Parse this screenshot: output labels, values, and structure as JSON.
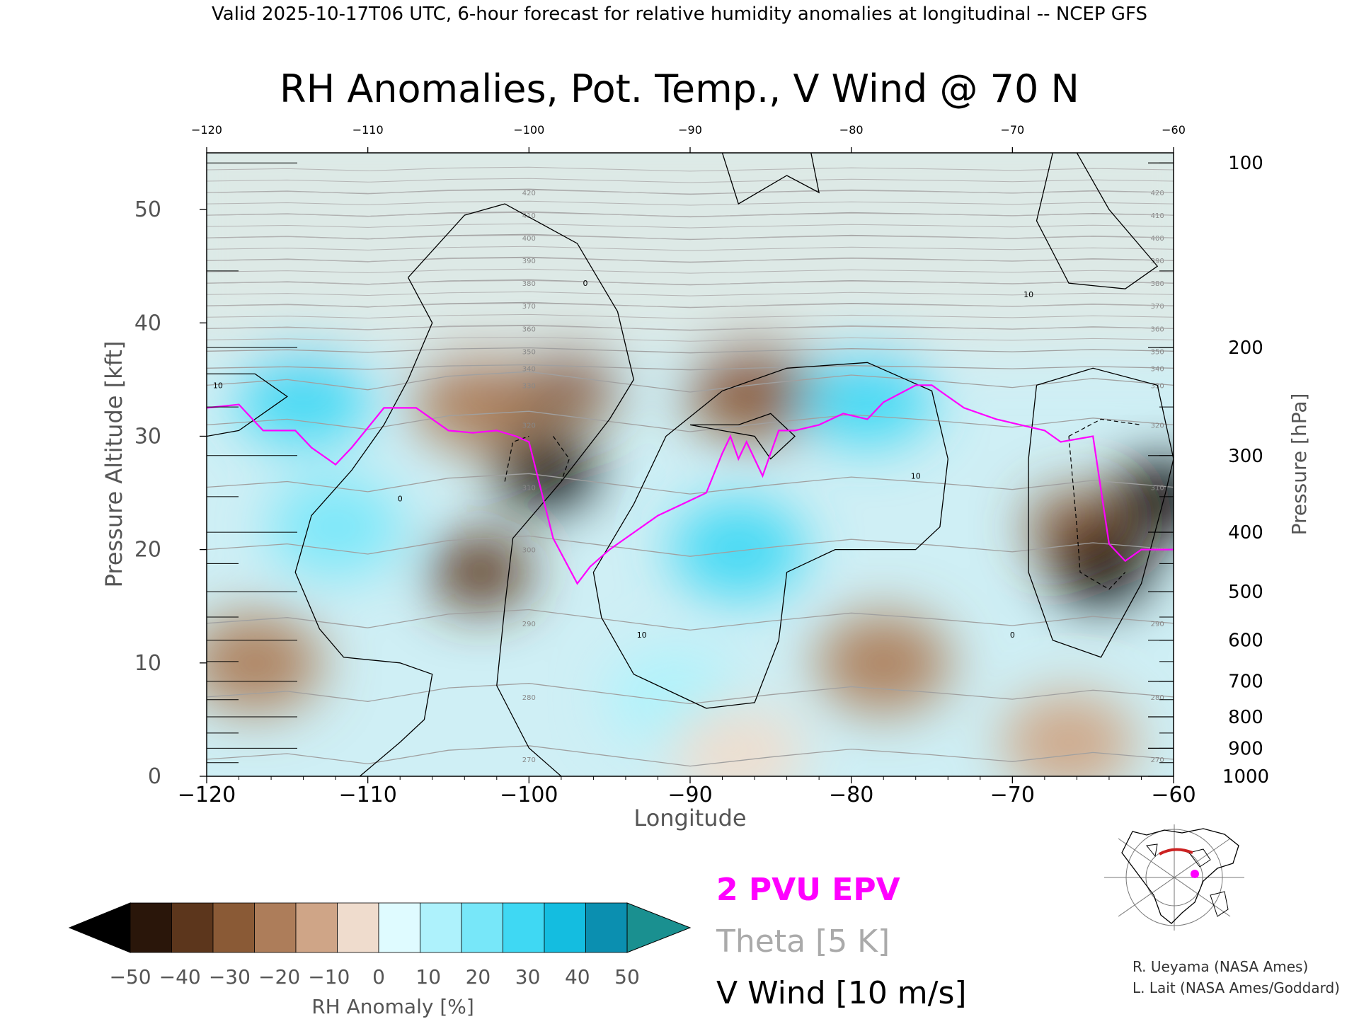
{
  "header": {
    "valid_line": "Valid 2025-10-17T06 UTC, 6-hour forecast for relative humidity anomalies at longitudinal -- NCEP GFS"
  },
  "chart_data": {
    "type": "heatmap",
    "title": "RH Anomalies, Pot. Temp., V Wind @ 70 N",
    "xlabel": "Longitude",
    "ylabel": "Pressure Altitude [kft]",
    "ylabel_right": "Pressure [hPa]",
    "xlim": [
      -120,
      -60
    ],
    "ylim": [
      0,
      55
    ],
    "x_ticks": [
      -120,
      -110,
      -100,
      -90,
      -80,
      -70,
      -60
    ],
    "x_tick_labels": [
      "−120",
      "−110",
      "−100",
      "−90",
      "−80",
      "−70",
      "−60"
    ],
    "y_ticks": [
      0,
      10,
      20,
      30,
      40,
      50
    ],
    "y_tick_labels": [
      "0",
      "10",
      "20",
      "30",
      "40",
      "50"
    ],
    "pressure_ticks": [
      {
        "hpa": 100,
        "label": "100"
      },
      {
        "hpa": 200,
        "label": "200"
      },
      {
        "hpa": 300,
        "label": "300"
      },
      {
        "hpa": 400,
        "label": "400"
      },
      {
        "hpa": 500,
        "label": "500"
      },
      {
        "hpa": 600,
        "label": "600"
      },
      {
        "hpa": 700,
        "label": "700"
      },
      {
        "hpa": 800,
        "label": "800"
      },
      {
        "hpa": 900,
        "label": "900"
      },
      {
        "hpa": 1000,
        "label": "1000"
      }
    ],
    "rh_anomaly_colorbar": {
      "label": "RH Anomaly [%]",
      "ticks": [
        -50,
        -40,
        -30,
        -20,
        -10,
        0,
        10,
        20,
        30,
        40,
        50
      ],
      "tick_labels": [
        "−50",
        "−40",
        "−30",
        "−20",
        "−10",
        "0",
        "10",
        "20",
        "30",
        "40",
        "50"
      ],
      "under_color": "#000000",
      "over_color": "#1a9090",
      "colors": [
        "#2a160a",
        "#5c361c",
        "#8a5a36",
        "#ad7d5a",
        "#cfa587",
        "#efdccd",
        "#dffbff",
        "#aef2fc",
        "#77e7f9",
        "#3fd8f3",
        "#14bde0",
        "#0b8fb0"
      ]
    },
    "rh_anomaly_field": {
      "units": "%",
      "regions": [
        {
          "lon": -114,
          "alt_kft": 33.5,
          "value": 30
        },
        {
          "lon": -112,
          "alt_kft": 22,
          "value": 20
        },
        {
          "lon": -117,
          "alt_kft": 10,
          "value": -30
        },
        {
          "lon": -103,
          "alt_kft": 33,
          "value": -30
        },
        {
          "lon": -99,
          "alt_kft": 27,
          "value": -50
        },
        {
          "lon": -103,
          "alt_kft": 18,
          "value": -45
        },
        {
          "lon": -97.5,
          "alt_kft": 34.5,
          "value": -40
        },
        {
          "lon": -86,
          "alt_kft": 34,
          "value": -35
        },
        {
          "lon": -87,
          "alt_kft": 20,
          "value": 30
        },
        {
          "lon": -79,
          "alt_kft": 33.5,
          "value": 35
        },
        {
          "lon": -91,
          "alt_kft": 7,
          "value": 10
        },
        {
          "lon": -78,
          "alt_kft": 10,
          "value": -30
        },
        {
          "lon": -66,
          "alt_kft": 22,
          "value": -40
        },
        {
          "lon": -64.5,
          "alt_kft": 18.5,
          "value": -50
        },
        {
          "lon": -60.8,
          "alt_kft": 24.5,
          "value": -50
        },
        {
          "lon": -66.5,
          "alt_kft": 3,
          "value": -20
        },
        {
          "lon": -87,
          "alt_kft": 2,
          "value": -10
        },
        {
          "lon": -90,
          "alt_kft": 48,
          "value": 0
        }
      ]
    },
    "theta_isentropes_K": {
      "interval": 5,
      "levels": [
        {
          "value": 270,
          "label": "270",
          "alt_kft": 1.5
        },
        {
          "value": 280,
          "label": "280",
          "alt_kft": 7
        },
        {
          "value": 290,
          "label": "290",
          "alt_kft": 13.5
        },
        {
          "value": 300,
          "label": "300",
          "alt_kft": 20
        },
        {
          "value": 310,
          "label": "310",
          "alt_kft": 25.5
        },
        {
          "value": 320,
          "label": "320",
          "alt_kft": 31
        },
        {
          "value": 330,
          "label": "330",
          "alt_kft": 34.5
        },
        {
          "value": 340,
          "label": "340",
          "alt_kft": 36
        },
        {
          "value": 350,
          "label": "350",
          "alt_kft": 37.5
        },
        {
          "value": 360,
          "label": "360",
          "alt_kft": 39.5
        },
        {
          "value": 370,
          "label": "370",
          "alt_kft": 41.5
        },
        {
          "value": 380,
          "label": "380",
          "alt_kft": 43.5
        },
        {
          "value": 390,
          "label": "390",
          "alt_kft": 45.5
        },
        {
          "value": 400,
          "label": "400",
          "alt_kft": 47.5
        },
        {
          "value": 410,
          "label": "410",
          "alt_kft": 49.5
        },
        {
          "value": 420,
          "label": "420",
          "alt_kft": 51.5
        }
      ]
    },
    "v_wind_contours_ms": {
      "interval": 10,
      "labels": [
        {
          "value": 0,
          "label": "0",
          "lon": -108,
          "alt_kft": 24.5
        },
        {
          "value": 0,
          "label": "0",
          "lon": -96.5,
          "alt_kft": 43.5
        },
        {
          "value": 10,
          "label": "10",
          "lon": -93,
          "alt_kft": 12.5
        },
        {
          "value": 10,
          "label": "10",
          "lon": -76,
          "alt_kft": 26.5
        },
        {
          "value": 10,
          "label": "10",
          "lon": -69,
          "alt_kft": 42.5
        },
        {
          "value": 10,
          "label": "10",
          "lon": -119.3,
          "alt_kft": 34.5
        },
        {
          "value": 0,
          "label": "0",
          "lon": -70,
          "alt_kft": 12.5
        }
      ]
    },
    "epv_2pvu": {
      "label": "2 PVU EPV",
      "color": "#ff00ff",
      "lon": [
        -120,
        -118,
        -116.5,
        -114.5,
        -113.5,
        -112.5,
        -112,
        -111,
        -109,
        -107,
        -105,
        -103.5,
        -102,
        -100.8,
        -100,
        -98.5,
        -97,
        -96.2,
        -95,
        -93.5,
        -92,
        -90.5,
        -89,
        -88,
        -87.5,
        -87,
        -86.5,
        -85.5,
        -84.5,
        -83.5,
        -82,
        -80.5,
        -79,
        -78,
        -76,
        -75,
        -73,
        -71,
        -69.5,
        -68,
        -67,
        -65,
        -64,
        -63,
        -62,
        -60
      ],
      "alt_kft": [
        32.5,
        32.8,
        30.5,
        30.5,
        29,
        28,
        27.5,
        29,
        32.5,
        32.5,
        30.5,
        30.3,
        30.5,
        30,
        29.5,
        21,
        17,
        18.5,
        20,
        21.5,
        23,
        24,
        25,
        28.5,
        30,
        28,
        29.5,
        26.5,
        30.5,
        30.5,
        31,
        32,
        31.5,
        33,
        34.5,
        34.5,
        32.5,
        31.5,
        31,
        30.5,
        29.5,
        30,
        20.5,
        19,
        20,
        20
      ]
    },
    "legend": [
      {
        "label": "2 PVU EPV",
        "color": "#ff00ff"
      },
      {
        "label": "Theta [5 K]",
        "color": "#aaaaaa"
      },
      {
        "label": "V Wind [10 m/s]",
        "color": "#000000"
      }
    ],
    "grid": false
  },
  "credits": {
    "line1": "R. Ueyama (NASA Ames)",
    "line2": "L. Lait (NASA Ames/Goddard)"
  },
  "locator_map": {
    "icon": "polar-locator-map-icon",
    "track_color": "#cc2222",
    "marker_color": "#ff00ff"
  }
}
